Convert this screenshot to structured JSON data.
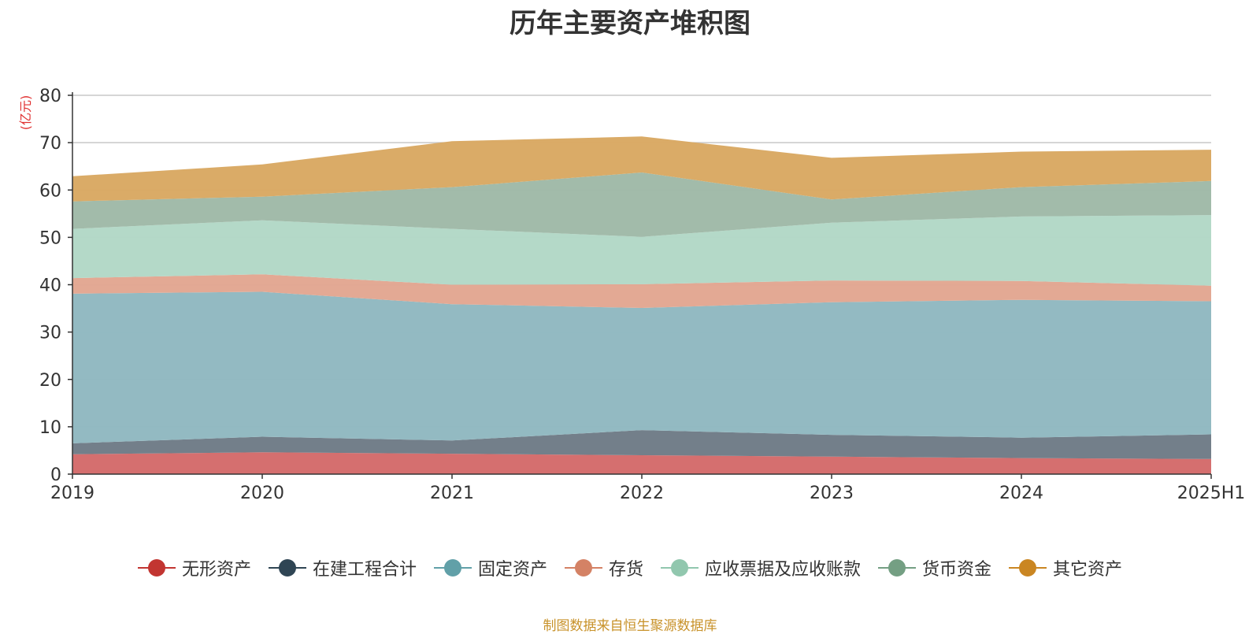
{
  "chart_data": {
    "type": "area",
    "title": "历年主要资产堆积图",
    "ylabel": "(亿元)",
    "xlabel": "",
    "categories": [
      "2019",
      "2020",
      "2021",
      "2022",
      "2023",
      "2024",
      "2025H1"
    ],
    "ylim": [
      0,
      80
    ],
    "yticks": [
      "0",
      "10",
      "20",
      "30",
      "40",
      "50",
      "60",
      "70",
      "80"
    ],
    "stacked": true,
    "grid": true,
    "legend_position": "bottom",
    "series": [
      {
        "name": "无形资产",
        "color": "#c23531",
        "area_color": "#d46a6a",
        "values": [
          4.2,
          4.6,
          4.3,
          4.0,
          3.7,
          3.4,
          3.2
        ]
      },
      {
        "name": "在建工程合计",
        "color": "#2f4554",
        "area_color": "#6e7b86",
        "values": [
          2.3,
          3.3,
          2.8,
          5.3,
          4.6,
          4.3,
          5.2
        ]
      },
      {
        "name": "固定资产",
        "color": "#61a0a8",
        "area_color": "#90b8c0",
        "values": [
          31.6,
          30.6,
          28.8,
          25.8,
          28.0,
          29.1,
          28.1
        ]
      },
      {
        "name": "存货",
        "color": "#d48265",
        "area_color": "#e2a691",
        "values": [
          3.3,
          3.7,
          4.1,
          5.0,
          4.6,
          4.0,
          3.3
        ]
      },
      {
        "name": "应收票据及应收账款",
        "color": "#91c7ae",
        "area_color": "#b2d8c6",
        "values": [
          10.4,
          11.4,
          11.8,
          10.0,
          12.2,
          13.6,
          14.9
        ]
      },
      {
        "name": "货币资金",
        "color": "#749f83",
        "area_color": "#9fb9a7",
        "values": [
          5.8,
          5.0,
          8.8,
          13.6,
          4.9,
          6.2,
          7.2
        ]
      },
      {
        "name": "其它资产",
        "color": "#ca8622",
        "area_color": "#d9a862",
        "values": [
          5.3,
          6.8,
          9.7,
          7.6,
          8.8,
          7.5,
          6.6
        ]
      }
    ]
  },
  "source_note": "制图数据来自恒生聚源数据库"
}
